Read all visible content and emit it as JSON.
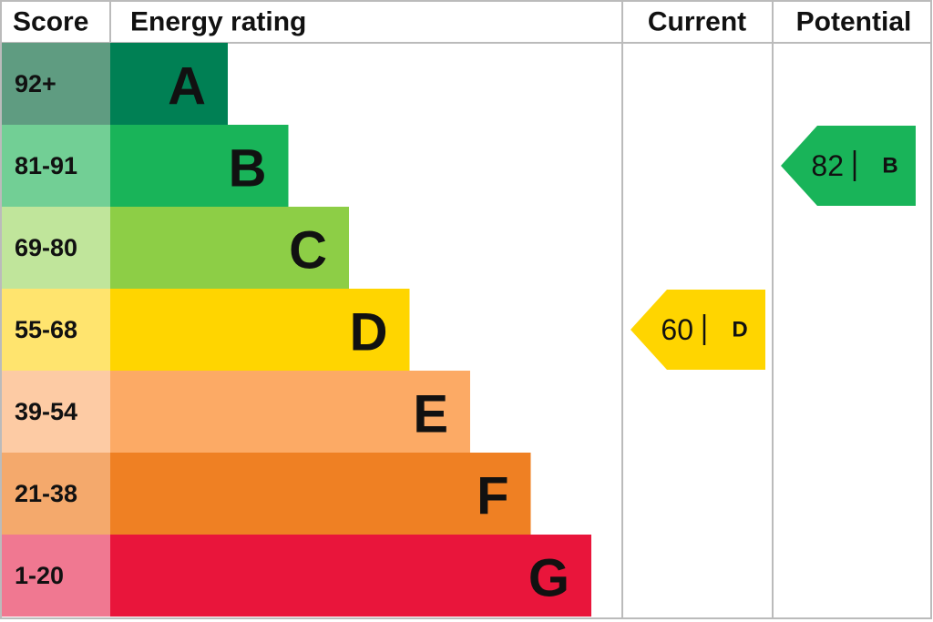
{
  "header": {
    "score": "Score",
    "rating": "Energy rating",
    "current": "Current",
    "potential": "Potential"
  },
  "bands": [
    {
      "score": "92+",
      "letter": "A",
      "color": "#008054",
      "light": "#5f9c81"
    },
    {
      "score": "81-91",
      "letter": "B",
      "color": "#19b459",
      "light": "#72cf95"
    },
    {
      "score": "69-80",
      "letter": "C",
      "color": "#8dce46",
      "light": "#c0e59b"
    },
    {
      "score": "55-68",
      "letter": "D",
      "color": "#ffd500",
      "light": "#ffe46e"
    },
    {
      "score": "39-54",
      "letter": "E",
      "color": "#fcaa65",
      "light": "#fdcba4"
    },
    {
      "score": "21-38",
      "letter": "F",
      "color": "#ef8023",
      "light": "#f4a96c"
    },
    {
      "score": "1-20",
      "letter": "G",
      "color": "#e9153b",
      "light": "#f07891"
    }
  ],
  "current": {
    "value": 60,
    "band": "D"
  },
  "potential": {
    "value": 82,
    "band": "B"
  }
}
